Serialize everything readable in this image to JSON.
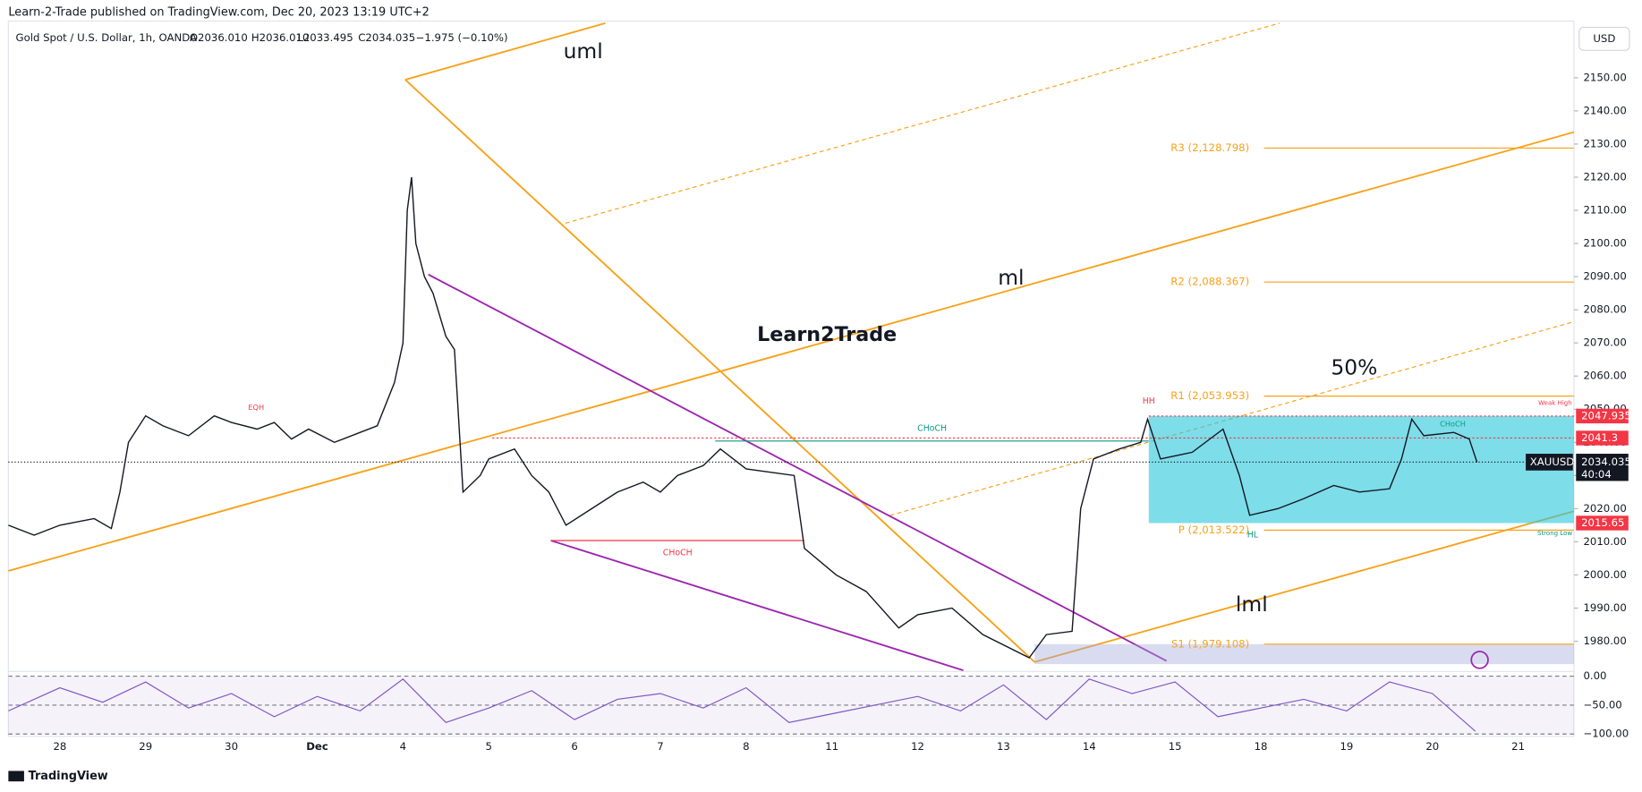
{
  "header": {
    "publisher": "Learn-2-Trade published on TradingView.com, Dec 20, 2023 13:19 UTC+2",
    "symbol": "Gold Spot / U.S. Dollar, 1h, OANDA",
    "open": "O2036.010",
    "high": "H2036.010",
    "low": "L2033.495",
    "close": "C2034.035",
    "change": "−1.975 (−0.10%)",
    "currency": "USD"
  },
  "chart": {
    "ylim": [
      1971.2,
      2167.1
    ],
    "xlim": [
      -0.6,
      17.65
    ],
    "yticks": [
      {
        "value": 1980,
        "label": "1980.00"
      },
      {
        "value": 1990,
        "label": "1990.00"
      },
      {
        "value": 2000,
        "label": "2000.00"
      },
      {
        "value": 2010,
        "label": "2010.00"
      },
      {
        "value": 2020,
        "label": "2020.00"
      },
      {
        "value": 2030,
        "label": "2030.00"
      },
      {
        "value": 2040,
        "label": "2040.00"
      },
      {
        "value": 2050,
        "label": "2050.00"
      },
      {
        "value": 2060,
        "label": "2060.00"
      },
      {
        "value": 2070,
        "label": "2070.00"
      },
      {
        "value": 2080,
        "label": "2080.00"
      },
      {
        "value": 2090,
        "label": "2090.00"
      },
      {
        "value": 2100,
        "label": "2100.00"
      },
      {
        "value": 2110,
        "label": "2110.00"
      },
      {
        "value": 2120,
        "label": "2120.00"
      },
      {
        "value": 2130,
        "label": "2130.00"
      },
      {
        "value": 2140,
        "label": "2140.00"
      },
      {
        "value": 2150,
        "label": "2150.00"
      }
    ],
    "categories": [
      "28",
      "29",
      "30",
      "Dec",
      "4",
      "5",
      "6",
      "7",
      "8",
      "11",
      "12",
      "13",
      "14",
      "15",
      "18",
      "19",
      "20",
      "21"
    ],
    "price": {
      "color": "#131722",
      "x": [
        -0.6,
        -0.3,
        0,
        0.4,
        0.6,
        0.7,
        0.8,
        1.0,
        1.2,
        1.5,
        1.8,
        2.0,
        2.3,
        2.5,
        2.7,
        2.9,
        3.2,
        3.5,
        3.7,
        3.9,
        4.0,
        4.05,
        4.1,
        4.15,
        4.25,
        4.35,
        4.5,
        4.6,
        4.7,
        4.9,
        5.0,
        5.3,
        5.5,
        5.7,
        5.9,
        6.2,
        6.5,
        6.8,
        7.0,
        7.2,
        7.5,
        7.7,
        8.0,
        8.56,
        8.68,
        9.05,
        9.4,
        9.78,
        10.0,
        10.4,
        10.76,
        11.3,
        11.5,
        11.8,
        11.9,
        12.05,
        12.35,
        12.6,
        12.68,
        12.83,
        13.2,
        13.56,
        13.75,
        13.87,
        14.2,
        14.5,
        14.85,
        15.15,
        15.5,
        15.64,
        15.76,
        15.9,
        16.25,
        16.43,
        16.52
      ],
      "values": [
        2015,
        2012,
        2015,
        2017,
        2014,
        2025,
        2040,
        2048,
        2045,
        2042,
        2048,
        2046,
        2044,
        2046,
        2041,
        2044,
        2040,
        2043,
        2045,
        2058,
        2070,
        2110,
        2120,
        2100,
        2090,
        2085,
        2072,
        2068,
        2025,
        2030,
        2035,
        2038,
        2030,
        2025,
        2015,
        2020,
        2025,
        2028,
        2025,
        2030,
        2033,
        2038,
        2032,
        2030,
        2008,
        2000,
        1995,
        1984,
        1988,
        1990,
        1982,
        1975,
        1982,
        1983,
        2020,
        2035,
        2038,
        2040,
        2047,
        2035,
        2037,
        2044,
        2030,
        2018,
        2020,
        2023,
        2027,
        2025,
        2026,
        2035,
        2047,
        2042,
        2043,
        2041,
        2034
      ]
    },
    "pivots": [
      {
        "value": 2128.798,
        "label": "R3 (2,128.798)"
      },
      {
        "value": 2088.367,
        "label": "R2 (2,088.367)"
      },
      {
        "value": 2053.953,
        "label": "R1 (2,053.953)"
      },
      {
        "value": 2013.522,
        "label": "P (2,013.522)"
      },
      {
        "value": 1979.108,
        "label": "S1 (1,979.108)"
      }
    ],
    "range_high": 2047.935,
    "choch_level": 2041.3,
    "range_low": 2015.65,
    "last": 2034.035,
    "symbol_tag": "XAUUSD",
    "countdown": "40:04",
    "rsi": {
      "ylim": [
        4.6,
        -104
      ],
      "yticks": [
        {
          "value": 0,
          "label": "0.00"
        },
        {
          "value": -50,
          "label": "−50.00"
        },
        {
          "value": -100,
          "label": "−100.00"
        }
      ],
      "color": "#7e57c2",
      "x": [
        -0.6,
        0,
        0.5,
        1,
        1.5,
        2,
        2.5,
        3,
        3.5,
        4,
        4.5,
        5,
        5.5,
        6,
        6.5,
        7,
        7.5,
        8,
        8.5,
        9,
        9.5,
        10,
        10.5,
        11,
        11.5,
        12,
        12.5,
        13,
        13.5,
        14,
        14.5,
        15,
        15.5,
        16,
        16.5
      ],
      "values": [
        -60,
        -20,
        -45,
        -10,
        -55,
        -30,
        -70,
        -35,
        -60,
        -5,
        -80,
        -55,
        -25,
        -75,
        -40,
        -30,
        -55,
        -20,
        -80,
        -65,
        -50,
        -35,
        -60,
        -15,
        -75,
        -5,
        -30,
        -10,
        -70,
        -55,
        -40,
        -60,
        -10,
        -30,
        -95
      ]
    },
    "annotations": {
      "uml": "uml",
      "ml": "ml",
      "lml": "lml",
      "fib": "50%",
      "logo": "Learn2Trade",
      "choch": "CHoCH",
      "eqh": "EQH",
      "hh": "HH",
      "hl": "HL",
      "weak_high": "Weak High",
      "strong_low": "Strong Low"
    }
  },
  "footer": {
    "brand": "TradingView"
  }
}
